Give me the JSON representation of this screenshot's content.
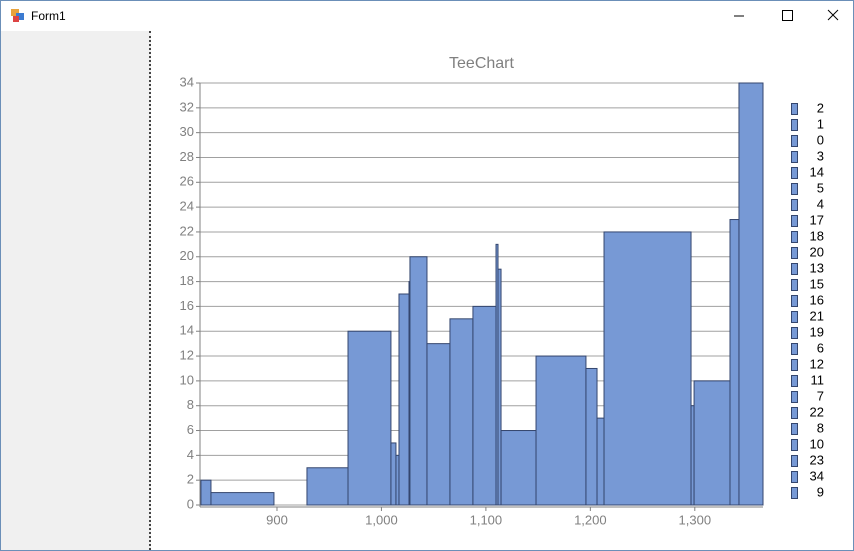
{
  "window": {
    "title": "Form1"
  },
  "chart_data": {
    "type": "histogram",
    "title": "TeeChart",
    "x": [
      827.2,
      836.8,
      897.1,
      928.7,
      968,
      1009.1,
      1013.9,
      1016.8,
      1026.4,
      1027.3,
      1043.6,
      1065.6,
      1087.6,
      1109.7,
      1111.6,
      1114.5,
      1148,
      1195.8,
      1206.4,
      1213.1,
      1296.4,
      1299.3,
      1333.7,
      1342.3,
      1365.3
    ],
    "values": [
      2,
      1,
      0,
      3,
      14,
      5,
      4,
      17,
      18,
      20,
      13,
      15,
      16,
      21,
      19,
      6,
      12,
      11,
      7,
      22,
      8,
      10,
      23,
      34,
      9
    ],
    "color": "#7799d5",
    "xlim": [
      826.3,
      1365.3
    ],
    "xticks": [
      900,
      {
        "value": 1000,
        "label": "1,000"
      },
      {
        "value": 1100,
        "label": "1,100"
      },
      {
        "value": 1200,
        "label": "1,200"
      },
      {
        "value": 1300,
        "label": "1,300"
      }
    ],
    "ylim": [
      0,
      34
    ],
    "yticks": [
      0,
      2,
      4,
      6,
      8,
      10,
      12,
      14,
      16,
      18,
      20,
      22,
      24,
      26,
      28,
      30,
      32,
      34
    ],
    "grid": true,
    "legend": "right"
  }
}
